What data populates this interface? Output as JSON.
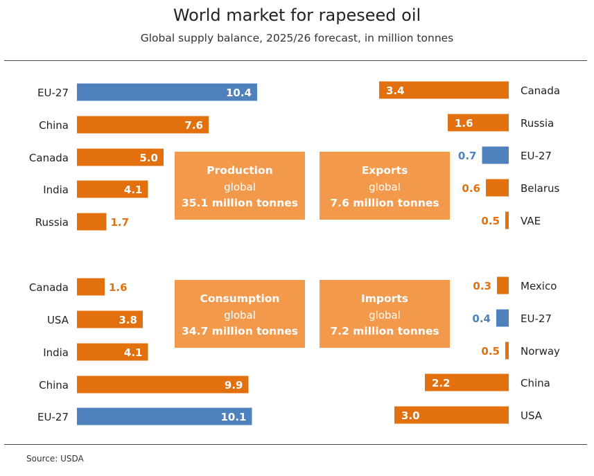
{
  "title": "World market for rapeseed oil",
  "subtitle": "Global supply balance, 2025/26 forecast, in million tonnes",
  "source": "Source:  USDA",
  "colors": {
    "orange": "#E3700F",
    "blue": "#4F81BD",
    "box": "#F2994C"
  },
  "chart_data": [
    {
      "type": "bar",
      "name": "production",
      "title": "Production",
      "box_label": "global",
      "box_total": "35.1 million tonnes",
      "categories": [
        "EU-27",
        "China",
        "Canada",
        "India",
        "Russia"
      ],
      "values": [
        10.4,
        7.6,
        5.0,
        4.1,
        1.7
      ],
      "highlight": [
        "EU-27"
      ]
    },
    {
      "type": "bar",
      "name": "exports",
      "title": "Exports",
      "box_label": "global",
      "box_total": "7.6 million tonnes",
      "categories": [
        "Canada",
        "Russia",
        "EU-27",
        "Belarus",
        "VAE"
      ],
      "values": [
        3.4,
        1.6,
        0.7,
        0.6,
        0.5
      ],
      "highlight": [
        "EU-27"
      ]
    },
    {
      "type": "bar",
      "name": "consumption",
      "title": "Consumption",
      "box_label": "global",
      "box_total": "34.7 million tonnes",
      "categories": [
        "Canada",
        "USA",
        "India",
        "China",
        "EU-27"
      ],
      "values": [
        1.6,
        3.8,
        4.1,
        9.9,
        10.1
      ],
      "highlight": [
        "EU-27"
      ]
    },
    {
      "type": "bar",
      "name": "imports",
      "title": "Imports",
      "box_label": "global",
      "box_total": "7.2 million tonnes",
      "categories": [
        "Mexico",
        "EU-27",
        "Norway",
        "China",
        "USA"
      ],
      "values": [
        0.3,
        0.4,
        0.5,
        2.2,
        3.0
      ],
      "highlight": [
        "EU-27"
      ]
    }
  ]
}
